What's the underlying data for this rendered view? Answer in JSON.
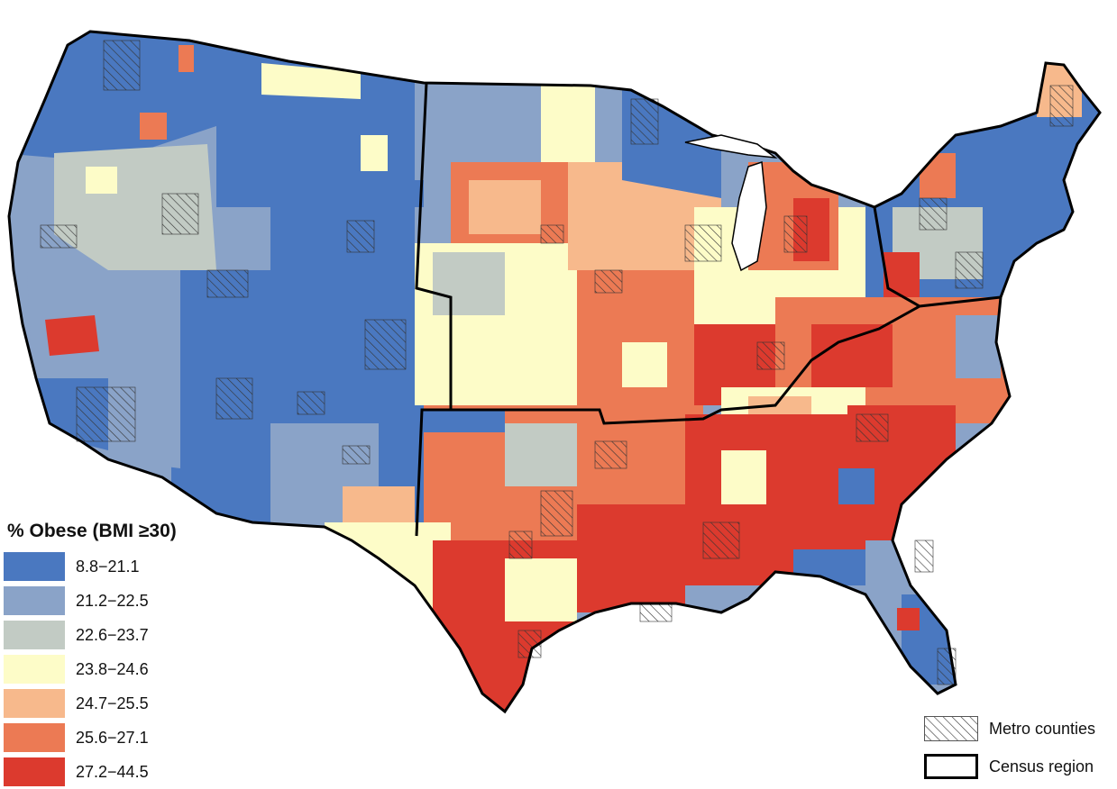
{
  "legend": {
    "title": "% Obese (BMI ≥30)",
    "classes": [
      {
        "label": "8.8−21.1",
        "color": "#4a78c0"
      },
      {
        "label": "21.2−22.5",
        "color": "#8aa3c8"
      },
      {
        "label": "22.6−23.7",
        "color": "#c2cbc4"
      },
      {
        "label": "23.8−24.6",
        "color": "#fdfcc8"
      },
      {
        "label": "24.7−25.5",
        "color": "#f7b98c"
      },
      {
        "label": "25.6−27.1",
        "color": "#ec7a54"
      },
      {
        "label": "27.2−44.5",
        "color": "#dc3a2e"
      }
    ]
  },
  "overlay_legend": {
    "metro_label": "Metro counties",
    "region_label": "Census region"
  },
  "map": {
    "subject": "US counties",
    "boundary_color": "#000000"
  }
}
